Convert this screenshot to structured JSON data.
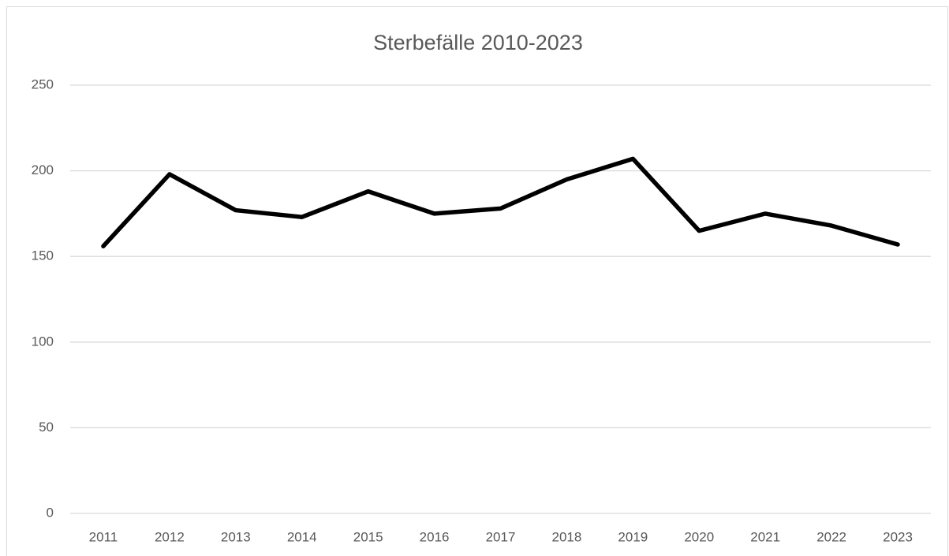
{
  "chart_data": {
    "type": "line",
    "title": "Sterbefälle 2010-2023",
    "categories": [
      "2011",
      "2012",
      "2013",
      "2014",
      "2015",
      "2016",
      "2017",
      "2018",
      "2019",
      "2020",
      "2021",
      "2022",
      "2023"
    ],
    "series": [
      {
        "name": "Sterbefälle",
        "color": "#000000",
        "values": [
          156,
          198,
          177,
          173,
          188,
          175,
          178,
          195,
          207,
          165,
          175,
          168,
          157
        ]
      }
    ],
    "ylim": [
      0,
      250
    ],
    "yticks": [
      0,
      50,
      100,
      150,
      200,
      250
    ],
    "grid": true
  }
}
